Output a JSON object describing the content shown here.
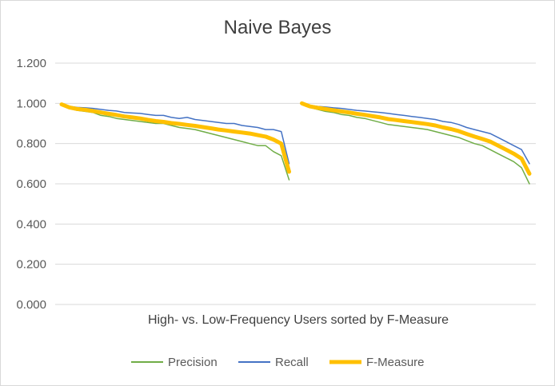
{
  "chart_data": {
    "type": "line",
    "title": "Naive Bayes",
    "xlabel": "High- vs. Low-Frequency Users sorted by F-Measure",
    "ylabel": "",
    "ylim": [
      0,
      1.2
    ],
    "yticks": [
      "0.000",
      "0.200",
      "0.400",
      "0.600",
      "0.800",
      "1.000",
      "1.200"
    ],
    "ytick_values": [
      0,
      0.2,
      0.4,
      0.6,
      0.8,
      1.0,
      1.2
    ],
    "grid": true,
    "legend_position": "bottom",
    "colors": {
      "Precision": "#70ad47",
      "Recall": "#4472c4",
      "F-Measure": "#ffc000"
    },
    "groups": [
      {
        "name": "High-Frequency",
        "series": [
          {
            "name": "Precision",
            "values": [
              0.995,
              0.975,
              0.965,
              0.96,
              0.955,
              0.94,
              0.935,
              0.925,
              0.92,
              0.915,
              0.91,
              0.905,
              0.9,
              0.9,
              0.89,
              0.88,
              0.875,
              0.87,
              0.86,
              0.85,
              0.84,
              0.83,
              0.82,
              0.81,
              0.8,
              0.79,
              0.79,
              0.76,
              0.74,
              0.62
            ]
          },
          {
            "name": "Recall",
            "values": [
              0.995,
              0.985,
              0.98,
              0.978,
              0.975,
              0.97,
              0.965,
              0.962,
              0.955,
              0.952,
              0.95,
              0.945,
              0.94,
              0.94,
              0.93,
              0.925,
              0.93,
              0.92,
              0.915,
              0.91,
              0.905,
              0.9,
              0.9,
              0.89,
              0.885,
              0.88,
              0.87,
              0.87,
              0.86,
              0.7
            ]
          },
          {
            "name": "F-Measure",
            "values": [
              0.995,
              0.98,
              0.972,
              0.968,
              0.962,
              0.955,
              0.948,
              0.942,
              0.935,
              0.93,
              0.925,
              0.918,
              0.912,
              0.908,
              0.902,
              0.898,
              0.893,
              0.888,
              0.882,
              0.876,
              0.87,
              0.865,
              0.86,
              0.855,
              0.85,
              0.842,
              0.835,
              0.82,
              0.8,
              0.66
            ]
          }
        ]
      },
      {
        "name": "Low-Frequency",
        "series": [
          {
            "name": "Precision",
            "values": [
              1.0,
              0.98,
              0.97,
              0.96,
              0.955,
              0.945,
              0.94,
              0.93,
              0.925,
              0.915,
              0.905,
              0.895,
              0.89,
              0.885,
              0.88,
              0.875,
              0.87,
              0.86,
              0.85,
              0.84,
              0.83,
              0.815,
              0.8,
              0.79,
              0.77,
              0.75,
              0.73,
              0.71,
              0.68,
              0.6
            ]
          },
          {
            "name": "Recall",
            "values": [
              1.0,
              0.99,
              0.985,
              0.982,
              0.978,
              0.975,
              0.97,
              0.965,
              0.962,
              0.958,
              0.955,
              0.95,
              0.945,
              0.94,
              0.935,
              0.93,
              0.925,
              0.92,
              0.91,
              0.905,
              0.895,
              0.88,
              0.87,
              0.86,
              0.85,
              0.83,
              0.81,
              0.79,
              0.77,
              0.7
            ]
          },
          {
            "name": "F-Measure",
            "values": [
              1.0,
              0.985,
              0.978,
              0.972,
              0.966,
              0.96,
              0.955,
              0.948,
              0.943,
              0.936,
              0.93,
              0.922,
              0.917,
              0.912,
              0.907,
              0.902,
              0.897,
              0.89,
              0.88,
              0.872,
              0.862,
              0.848,
              0.835,
              0.823,
              0.81,
              0.79,
              0.77,
              0.75,
              0.725,
              0.65
            ]
          }
        ]
      }
    ]
  }
}
